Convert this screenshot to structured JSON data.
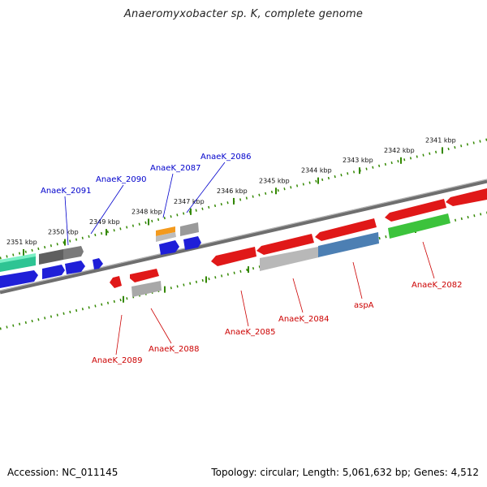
{
  "title": "Anaeromyxobacter sp. K, complete genome",
  "footer": {
    "accession": "Accession: NC_011145",
    "summary": "Topology: circular; Length: 5,061,632 bp; Genes: 4,512"
  },
  "colors": {
    "top_labels": "#0000cc",
    "bottom_labels": "#cc0000",
    "tick_green": "#338800",
    "backbone": "#7a7a7a"
  },
  "scale": {
    "kbp_labels": [
      "2351 kbp",
      "2350 kbp",
      "2349 kbp",
      "2348 kbp",
      "2347 kbp",
      "2346 kbp",
      "2345 kbp",
      "2344 kbp",
      "2343 kbp",
      "2342 kbp",
      "2341 kbp"
    ]
  },
  "genes": {
    "top": [
      "AnaeK_2091",
      "AnaeK_2090",
      "AnaeK_2087",
      "AnaeK_2086"
    ],
    "bottom": [
      "AnaeK_2089",
      "AnaeK_2088",
      "AnaeK_2085",
      "AnaeK_2084",
      "aspA",
      "AnaeK_2082"
    ]
  }
}
